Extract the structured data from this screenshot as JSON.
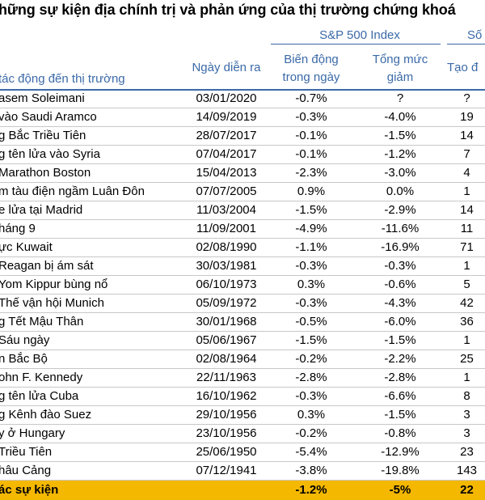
{
  "title": "hững sự kiện địa chính trị và phản ứng của thị trường chứng khoá",
  "headers": {
    "sp500": "S&P 500 Index",
    "so": "Số",
    "event": "tác động đến thị trường",
    "date": "Ngày diễn ra",
    "day_change_1": "Biến động",
    "day_change_2": "trong ngày",
    "total_1": "Tổng mức",
    "total_2": "giảm",
    "days": "Tạo đ"
  },
  "rows": [
    {
      "event": "asem Soleimani",
      "date": "03/01/2020",
      "day": "-0.7%",
      "total": "?",
      "days": "?"
    },
    {
      "event": " vào Saudi Aramco",
      "date": "14/09/2019",
      "day": "-0.3%",
      "total": "-4.0%",
      "days": "19"
    },
    {
      "event": "g Bắc Triều Tiên",
      "date": "28/07/2017",
      "day": "-0.1%",
      "total": "-1.5%",
      "days": "14"
    },
    {
      "event": "g tên lửa vào Syria",
      "date": "07/04/2017",
      "day": "-0.1%",
      "total": "-1.2%",
      "days": "7"
    },
    {
      "event": "Marathon Boston",
      "date": "15/04/2013",
      "day": "-2.3%",
      "total": "-3.0%",
      "days": "4"
    },
    {
      "event": "m tàu điện ngầm Luân Đôn",
      "date": "07/07/2005",
      "day": "0.9%",
      "total": "0.0%",
      "days": "1"
    },
    {
      "event": "e lửa tại Madrid",
      "date": "11/03/2004",
      "day": "-1.5%",
      "total": "-2.9%",
      "days": "14"
    },
    {
      "event": "háng 9",
      "date": "11/09/2001",
      "day": "-4.9%",
      "total": "-11.6%",
      "days": "11"
    },
    {
      "event": "ực Kuwait",
      "date": "02/08/1990",
      "day": "-1.1%",
      "total": "-16.9%",
      "days": "71"
    },
    {
      "event": "Reagan bị ám sát",
      "date": "30/03/1981",
      "day": "-0.3%",
      "total": "-0.3%",
      "days": "1"
    },
    {
      "event": "Yom Kippur bùng nổ",
      "date": "06/10/1973",
      "day": "0.3%",
      "total": "-0.6%",
      "days": "5"
    },
    {
      "event": " Thế vận hội Munich",
      "date": "05/09/1972",
      "day": "-0.3%",
      "total": "-4.3%",
      "days": "42"
    },
    {
      "event": "g Tết Mậu Thân",
      "date": "30/01/1968",
      "day": "-0.5%",
      "total": "-6.0%",
      "days": "36"
    },
    {
      "event": "Sáu ngày",
      "date": "05/06/1967",
      "day": "-1.5%",
      "total": "-1.5%",
      "days": "1"
    },
    {
      "event": "n Bắc Bộ",
      "date": "02/08/1964",
      "day": "-0.2%",
      "total": "-2.2%",
      "days": "25"
    },
    {
      "event": "ohn F. Kennedy",
      "date": "22/11/1963",
      "day": "-2.8%",
      "total": "-2.8%",
      "days": "1"
    },
    {
      "event": "g tên lửa Cuba",
      "date": "16/10/1962",
      "day": "-0.3%",
      "total": "-6.6%",
      "days": "8"
    },
    {
      "event": "g Kênh đào Suez",
      "date": "29/10/1956",
      "day": "0.3%",
      "total": "-1.5%",
      "days": "3"
    },
    {
      "event": "y ở Hungary",
      "date": "23/10/1956",
      "day": "-0.2%",
      "total": "-0.8%",
      "days": "3"
    },
    {
      "event": " Triều Tiên",
      "date": "25/06/1950",
      "day": "-5.4%",
      "total": "-12.9%",
      "days": "23"
    },
    {
      "event": "hâu Cảng",
      "date": "07/12/1941",
      "day": "-3.8%",
      "total": "-19.8%",
      "days": "143"
    }
  ],
  "total_row": {
    "event": "ác sự kiện",
    "date": "",
    "day": "-1.2%",
    "total": "-5%",
    "days": "22"
  },
  "colors": {
    "header_blue": "#3b6aa8",
    "total_bg": "#f5b800"
  }
}
